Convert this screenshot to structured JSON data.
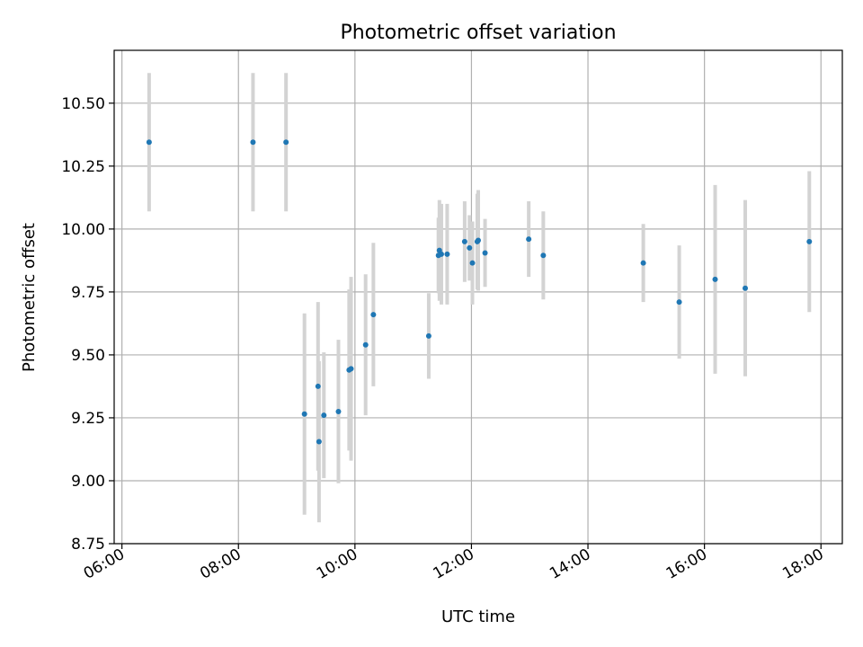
{
  "chart_data": {
    "type": "scatter",
    "title": "Photometric offset variation",
    "xlabel": "UTC time",
    "ylabel": "Photometric offset",
    "x_is_time": true,
    "xlim": [
      "05:52",
      "18:22"
    ],
    "ylim": [
      8.75,
      10.71
    ],
    "xticks": [
      "06:00",
      "08:00",
      "10:00",
      "12:00",
      "14:00",
      "16:00",
      "18:00"
    ],
    "yticks": [
      "8.75",
      "9.00",
      "9.25",
      "9.50",
      "9.75",
      "10.00",
      "10.25",
      "10.50"
    ],
    "grid": true,
    "errorbar_color": "#d3d3d3",
    "marker_color": "#1f77b4",
    "points": [
      {
        "x": "06:28",
        "y": 10.345,
        "yerr": 0.275
      },
      {
        "x": "08:15",
        "y": 10.345,
        "yerr": 0.275
      },
      {
        "x": "08:49",
        "y": 10.345,
        "yerr": 0.275
      },
      {
        "x": "09:08",
        "y": 9.265,
        "yerr": 0.4
      },
      {
        "x": "09:22",
        "y": 9.375,
        "yerr": 0.335
      },
      {
        "x": "09:23",
        "y": 9.155,
        "yerr": 0.32
      },
      {
        "x": "09:28",
        "y": 9.26,
        "yerr": 0.25
      },
      {
        "x": "09:43",
        "y": 9.275,
        "yerr": 0.285
      },
      {
        "x": "09:54",
        "y": 9.44,
        "yerr": 0.32
      },
      {
        "x": "09:56",
        "y": 9.445,
        "yerr": 0.365
      },
      {
        "x": "10:11",
        "y": 9.54,
        "yerr": 0.28
      },
      {
        "x": "10:19",
        "y": 9.66,
        "yerr": 0.285
      },
      {
        "x": "11:16",
        "y": 9.575,
        "yerr": 0.17
      },
      {
        "x": "11:26",
        "y": 9.895,
        "yerr": 0.15
      },
      {
        "x": "11:27",
        "y": 9.915,
        "yerr": 0.2
      },
      {
        "x": "11:29",
        "y": 9.9,
        "yerr": 0.2
      },
      {
        "x": "11:35",
        "y": 9.9,
        "yerr": 0.2
      },
      {
        "x": "11:53",
        "y": 9.95,
        "yerr": 0.16
      },
      {
        "x": "11:58",
        "y": 9.925,
        "yerr": 0.13
      },
      {
        "x": "12:01",
        "y": 9.865,
        "yerr": 0.165
      },
      {
        "x": "12:06",
        "y": 9.95,
        "yerr": 0.19
      },
      {
        "x": "12:07",
        "y": 9.955,
        "yerr": 0.2
      },
      {
        "x": "12:14",
        "y": 9.905,
        "yerr": 0.135
      },
      {
        "x": "12:59",
        "y": 9.96,
        "yerr": 0.15
      },
      {
        "x": "13:14",
        "y": 9.895,
        "yerr": 0.175
      },
      {
        "x": "14:57",
        "y": 9.865,
        "yerr": 0.155
      },
      {
        "x": "15:34",
        "y": 9.71,
        "yerr": 0.225
      },
      {
        "x": "16:11",
        "y": 9.8,
        "yerr": 0.375
      },
      {
        "x": "16:42",
        "y": 9.765,
        "yerr": 0.35
      },
      {
        "x": "17:48",
        "y": 9.95,
        "yerr": 0.28
      }
    ]
  }
}
